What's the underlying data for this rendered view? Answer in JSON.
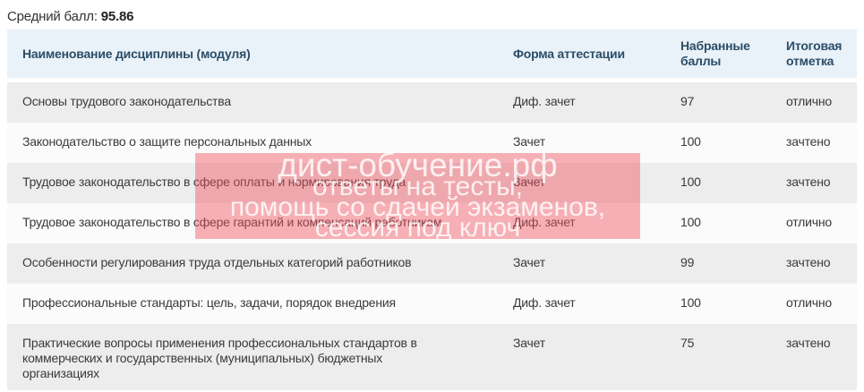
{
  "summary": {
    "average_label": "Средний балл:",
    "average_value": "95.86"
  },
  "table": {
    "columns": [
      {
        "label": "Наименование дисциплины (модуля)"
      },
      {
        "label": "Форма аттестации"
      },
      {
        "label": "Набранные баллы"
      },
      {
        "label": "Итоговая отметка"
      }
    ],
    "rows": [
      {
        "discipline": "Основы трудового законодательства",
        "form": "Диф. зачет",
        "points": "97",
        "mark": "отлично"
      },
      {
        "discipline": "Законодательство о защите персональных данных",
        "form": "Зачет",
        "points": "100",
        "mark": "зачтено"
      },
      {
        "discipline": "Трудовое законодательство в сфере оплаты и нормирования труда",
        "form": "Зачет",
        "points": "100",
        "mark": "зачтено"
      },
      {
        "discipline": "Трудовое законодательство в сфере гарантий и компенсаций работникам",
        "form": "Диф. зачет",
        "points": "100",
        "mark": "отлично"
      },
      {
        "discipline": "Особенности регулирования труда отдельных категорий работников",
        "form": "Зачет",
        "points": "99",
        "mark": "зачтено"
      },
      {
        "discipline": "Профессиональные стандарты: цель, задачи, порядок внедрения",
        "form": "Диф. зачет",
        "points": "100",
        "mark": "отлично"
      },
      {
        "discipline": "Практические вопросы применения профессиональных стандартов в\nкоммерческих и государственных (муниципальных) бюджетных\nорганизациях",
        "form": "Зачет",
        "points": "75",
        "mark": "зачтено"
      }
    ]
  },
  "watermark": {
    "lines": [
      "дист-обучение.рф",
      "ответы на тесты,",
      "помощь со сдачей экзаменов,",
      "сессия под ключ"
    ]
  },
  "colors": {
    "header_bg": "#e9f1f9",
    "header_text": "#2b4d66",
    "row_gray": "#ededed",
    "row_white": "#fbfbfb",
    "body_text": "#3a3a3a",
    "watermark_bg": "rgba(240,85,95,0.45)",
    "watermark_text": "rgba(255,255,255,0.82)"
  }
}
